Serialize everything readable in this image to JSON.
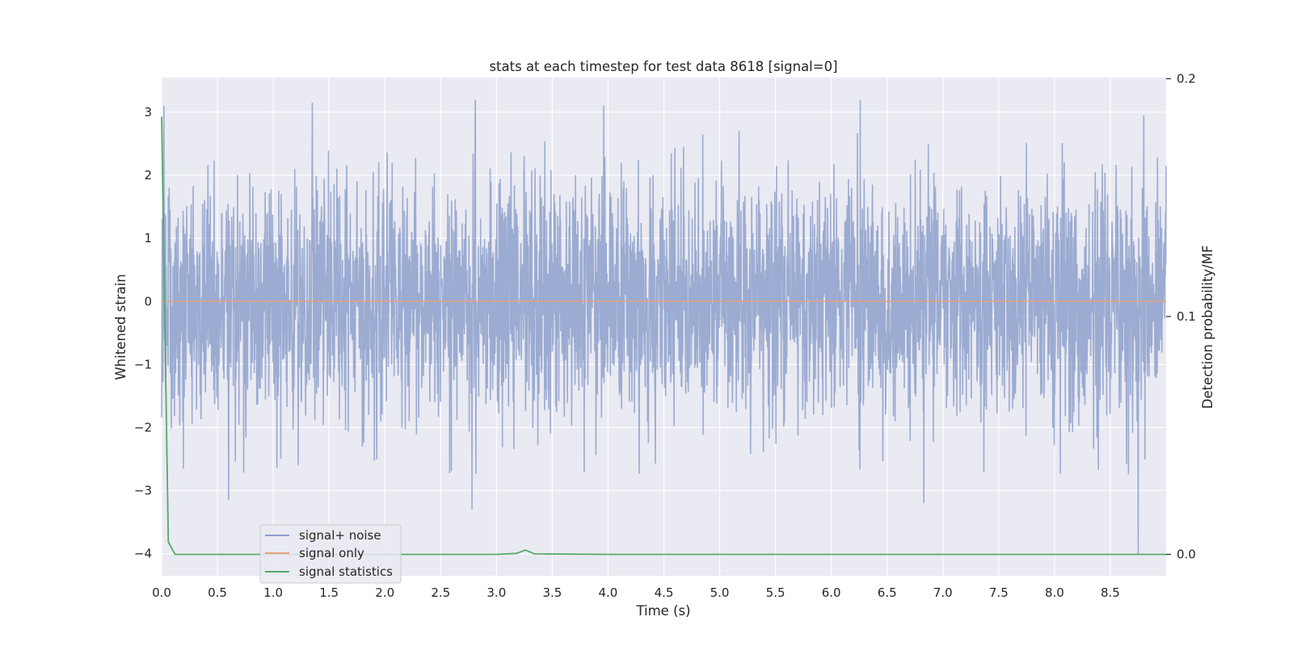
{
  "chart_data": {
    "type": "line",
    "title": "stats at each timestep for test data 8618 [signal=0]",
    "xlabel": "Time (s)",
    "ylabel": "Whitened strain",
    "y2label": "Detection probability/MF",
    "xlim": [
      0,
      9.0
    ],
    "ylim": [
      -4.35,
      3.55
    ],
    "y2lim": [
      -0.009,
      0.2005
    ],
    "x_ticks": [
      0.0,
      0.5,
      1.0,
      1.5,
      2.0,
      2.5,
      3.0,
      3.5,
      4.0,
      4.5,
      5.0,
      5.5,
      6.0,
      6.5,
      7.0,
      7.5,
      8.0,
      8.5
    ],
    "x_tick_labels": [
      "0.0",
      "0.5",
      "1.0",
      "1.5",
      "2.0",
      "2.5",
      "3.0",
      "3.5",
      "4.0",
      "4.5",
      "5.0",
      "5.5",
      "6.0",
      "6.5",
      "7.0",
      "7.5",
      "8.0",
      "8.5"
    ],
    "y_ticks": [
      -4,
      -3,
      -2,
      -1,
      0,
      1,
      2,
      3
    ],
    "y_tick_labels": [
      "−4",
      "−3",
      "−2",
      "−1",
      "0",
      "1",
      "2",
      "3"
    ],
    "y2_ticks": [
      0.0,
      0.1,
      0.2
    ],
    "y2_tick_labels": [
      "0.0",
      "0.1",
      "0.2"
    ],
    "grid": true,
    "legend_position": "lower-left",
    "series": [
      {
        "name": "signal+ noise",
        "axis": "left",
        "color": "#8da0cb",
        "description_kind": "noise",
        "x_range": [
          0,
          9.0
        ],
        "std": 0.95,
        "peaks": [
          {
            "x": 0.02,
            "y": 3.1
          },
          {
            "x": 0.6,
            "y": -3.15
          },
          {
            "x": 1.35,
            "y": 3.15
          },
          {
            "x": 2.78,
            "y": -3.3
          },
          {
            "x": 2.81,
            "y": 3.2
          },
          {
            "x": 3.96,
            "y": 3.1
          },
          {
            "x": 6.26,
            "y": 3.2
          },
          {
            "x": 6.83,
            "y": -3.2
          },
          {
            "x": 8.75,
            "y": -4.0
          },
          {
            "x": 8.8,
            "y": 2.95
          },
          {
            "x": 9.0,
            "y": 2.15
          }
        ]
      },
      {
        "name": "signal only",
        "axis": "left",
        "color": "#e5a27f",
        "x": [
          0,
          9.0
        ],
        "y": [
          0,
          0
        ]
      },
      {
        "name": "signal statistics",
        "axis": "right",
        "color": "#55a868",
        "x": [
          0.0,
          0.06,
          0.12,
          0.5,
          1.0,
          2.0,
          3.0,
          3.18,
          3.26,
          3.34,
          4.0,
          5.0,
          6.0,
          7.0,
          8.0,
          9.0
        ],
        "y": [
          0.184,
          0.0052,
          0.0,
          0.0,
          0.0,
          0.0,
          0.0,
          0.0004,
          0.0018,
          0.0002,
          0.0,
          0.0,
          0.0,
          0.0,
          0.0,
          0.0
        ]
      }
    ]
  }
}
